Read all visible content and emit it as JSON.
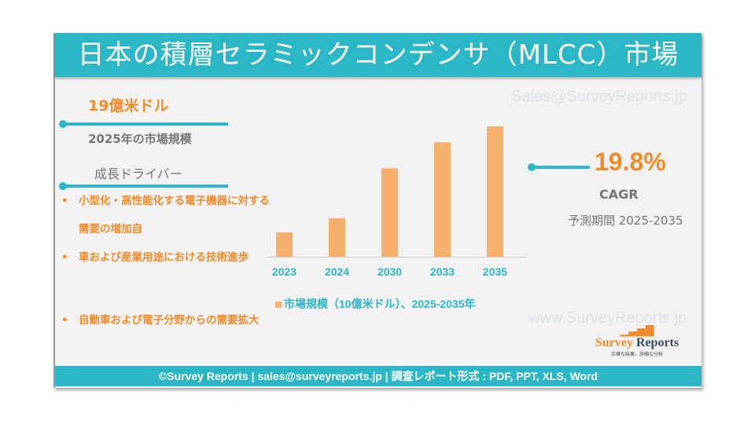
{
  "title": "日本の積層セラミックコンデンサ（MLCC）市場",
  "watermarks": {
    "email": "Sales@SurveyReports.jp",
    "site": "www.SurveyReports.jp"
  },
  "market_size": {
    "value": "19億米ドル",
    "label": "2025年の市場規模"
  },
  "drivers": {
    "heading": "成長ドライバー",
    "items": [
      "小型化・高性能化する電子機器に対する需要の増加自",
      "車および産業用途における技術進歩",
      "自動車および電子分野からの需要拡大"
    ]
  },
  "cagr": {
    "value": "19.8%",
    "label": "CAGR",
    "period": "予測期間 2025-2035"
  },
  "logo": {
    "word1": "Survey",
    "word2": "Reports",
    "tagline": "正確な結果、詳細な分析"
  },
  "footer": "©Survey Reports | sales@surveyreports.jp |  調査レポート形式 : PDF, PPT, XLS, Word",
  "colors": {
    "teal": "#2bb7c6",
    "orange": "#ee8c2c",
    "bar": "#f5b06b"
  },
  "chart_data": {
    "type": "bar",
    "categories": [
      "2023",
      "2024",
      "2030",
      "2033",
      "2035"
    ],
    "series": [
      {
        "name": "市場規模（10億米ドル）、2025-2035年",
        "values": [
          21.5,
          34,
          78,
          101,
          115
        ]
      }
    ],
    "ylim": [
      0,
      115
    ],
    "grid": false,
    "legend": "bottom"
  }
}
